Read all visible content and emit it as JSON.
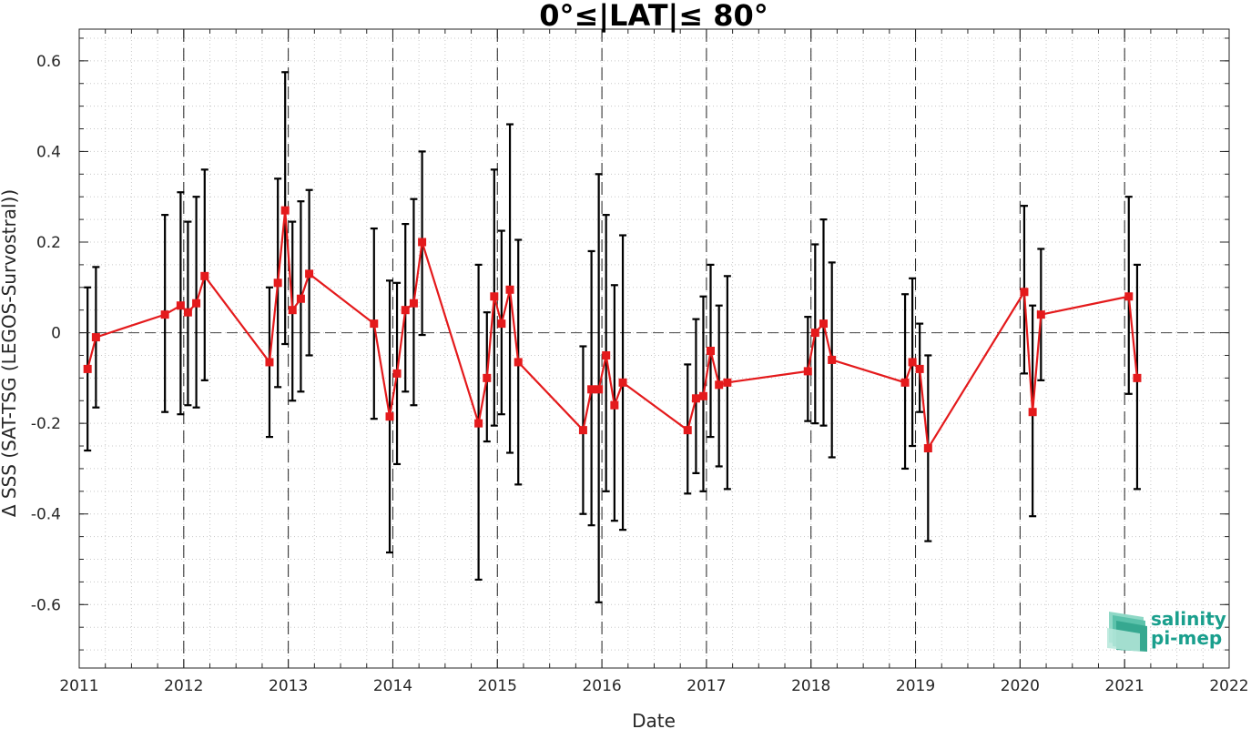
{
  "chart_data": {
    "type": "line",
    "title": "0°≤|LAT|≤ 80°",
    "xlabel": "Date",
    "ylabel": "Δ SSS (SAT-TSG (LEGOS-Survostral))",
    "xlim": [
      2011,
      2022
    ],
    "ylim": [
      -0.74,
      0.67
    ],
    "x_ticks": [
      2011,
      2012,
      2013,
      2014,
      2015,
      2016,
      2017,
      2018,
      2019,
      2020,
      2021,
      2022
    ],
    "x_tick_labels": [
      "2011",
      "2012",
      "2013",
      "2014",
      "2015",
      "2016",
      "2017",
      "2018",
      "2019",
      "2020",
      "2021",
      "2022"
    ],
    "y_ticks": [
      -0.6,
      -0.4,
      -0.2,
      0,
      0.2,
      0.4,
      0.6
    ],
    "y_tick_labels": [
      "-0.6",
      "-0.4",
      "-0.2",
      "0",
      "0.2",
      "0.4",
      "0.6"
    ],
    "grid": "minor dotted",
    "zero_line": "dashed",
    "year_separators": "dashed vertical at year boundaries",
    "colors": {
      "series": "#e41a1c",
      "errorbars": "#000000",
      "axes": "#262626"
    },
    "series": [
      {
        "marker": "square",
        "x": [
          2011.08,
          2011.16,
          2011.82,
          2011.97,
          2012.04,
          2012.12,
          2012.2,
          2012.82,
          2012.9,
          2012.97,
          2013.04,
          2013.12,
          2013.2,
          2013.82,
          2013.97,
          2014.04,
          2014.12,
          2014.2,
          2014.28,
          2014.82,
          2014.9,
          2014.97,
          2015.04,
          2015.12,
          2015.2,
          2015.82,
          2015.9,
          2015.97,
          2016.04,
          2016.12,
          2016.2,
          2016.82,
          2016.9,
          2016.97,
          2017.04,
          2017.12,
          2017.2,
          2017.97,
          2018.04,
          2018.12,
          2018.2,
          2018.9,
          2018.97,
          2019.04,
          2019.12,
          2020.04,
          2020.12,
          2020.2,
          2021.04,
          2021.12
        ],
        "y": [
          -0.08,
          -0.01,
          0.04,
          0.06,
          0.045,
          0.065,
          0.125,
          -0.065,
          0.11,
          0.27,
          0.05,
          0.075,
          0.13,
          0.02,
          -0.185,
          -0.09,
          0.05,
          0.065,
          0.2,
          -0.2,
          -0.1,
          0.08,
          0.02,
          0.095,
          -0.065,
          -0.215,
          -0.125,
          -0.125,
          -0.05,
          -0.16,
          -0.11,
          -0.215,
          -0.145,
          -0.14,
          -0.04,
          -0.115,
          -0.11,
          -0.085,
          0.0,
          0.02,
          -0.06,
          -0.11,
          -0.065,
          -0.08,
          -0.255,
          0.09,
          -0.175,
          0.04,
          0.08,
          -0.1
        ],
        "err_low": [
          -0.26,
          -0.165,
          -0.175,
          -0.18,
          -0.16,
          -0.165,
          -0.105,
          -0.23,
          -0.12,
          -0.025,
          -0.15,
          -0.13,
          -0.05,
          -0.19,
          -0.485,
          -0.29,
          -0.13,
          -0.16,
          -0.005,
          -0.545,
          -0.24,
          -0.205,
          -0.18,
          -0.265,
          -0.335,
          -0.4,
          -0.425,
          -0.595,
          -0.35,
          -0.415,
          -0.435,
          -0.355,
          -0.31,
          -0.35,
          -0.23,
          -0.295,
          -0.345,
          -0.195,
          -0.2,
          -0.205,
          -0.275,
          -0.3,
          -0.25,
          -0.175,
          -0.46,
          -0.09,
          -0.405,
          -0.105,
          -0.135,
          -0.345
        ],
        "err_high": [
          0.1,
          0.145,
          0.26,
          0.31,
          0.245,
          0.3,
          0.36,
          0.1,
          0.34,
          0.575,
          0.245,
          0.29,
          0.315,
          0.23,
          0.115,
          0.11,
          0.24,
          0.295,
          0.4,
          0.15,
          0.045,
          0.36,
          0.225,
          0.46,
          0.205,
          -0.03,
          0.18,
          0.35,
          0.26,
          0.105,
          0.215,
          -0.07,
          0.03,
          0.08,
          0.15,
          0.06,
          0.125,
          0.035,
          0.195,
          0.25,
          0.155,
          0.085,
          0.12,
          0.02,
          -0.05,
          0.28,
          0.06,
          0.185,
          0.3,
          0.15
        ]
      }
    ]
  },
  "logo": {
    "line1": "salinity",
    "line2": "pi-mep"
  }
}
